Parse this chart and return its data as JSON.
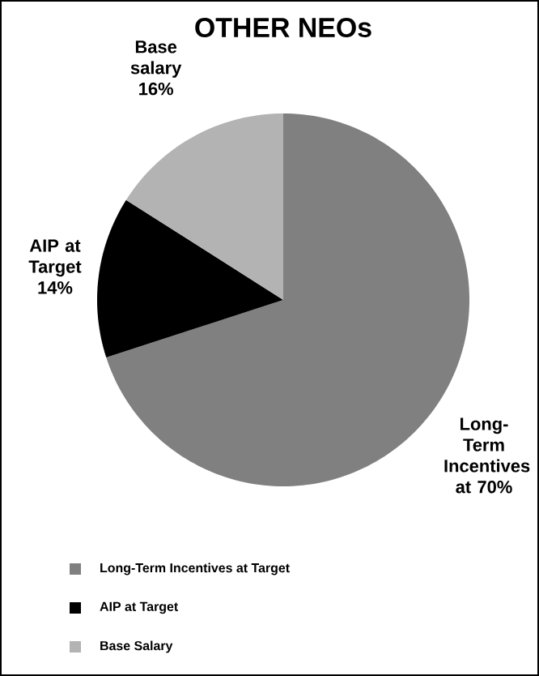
{
  "chart_data": {
    "type": "pie",
    "title": "OTHER NEOs",
    "categories": [
      "Long-Term Incentives at Target",
      "AIP at Target",
      "Base Salary"
    ],
    "values": [
      70,
      14,
      16
    ],
    "colors": [
      "#808080",
      "#000000",
      "#b3b3b3"
    ],
    "value_labels": [
      "Long-Term Incentives at 70%",
      "AIP at Target 14%",
      "Base salary 16%"
    ],
    "legend": "bottom"
  }
}
